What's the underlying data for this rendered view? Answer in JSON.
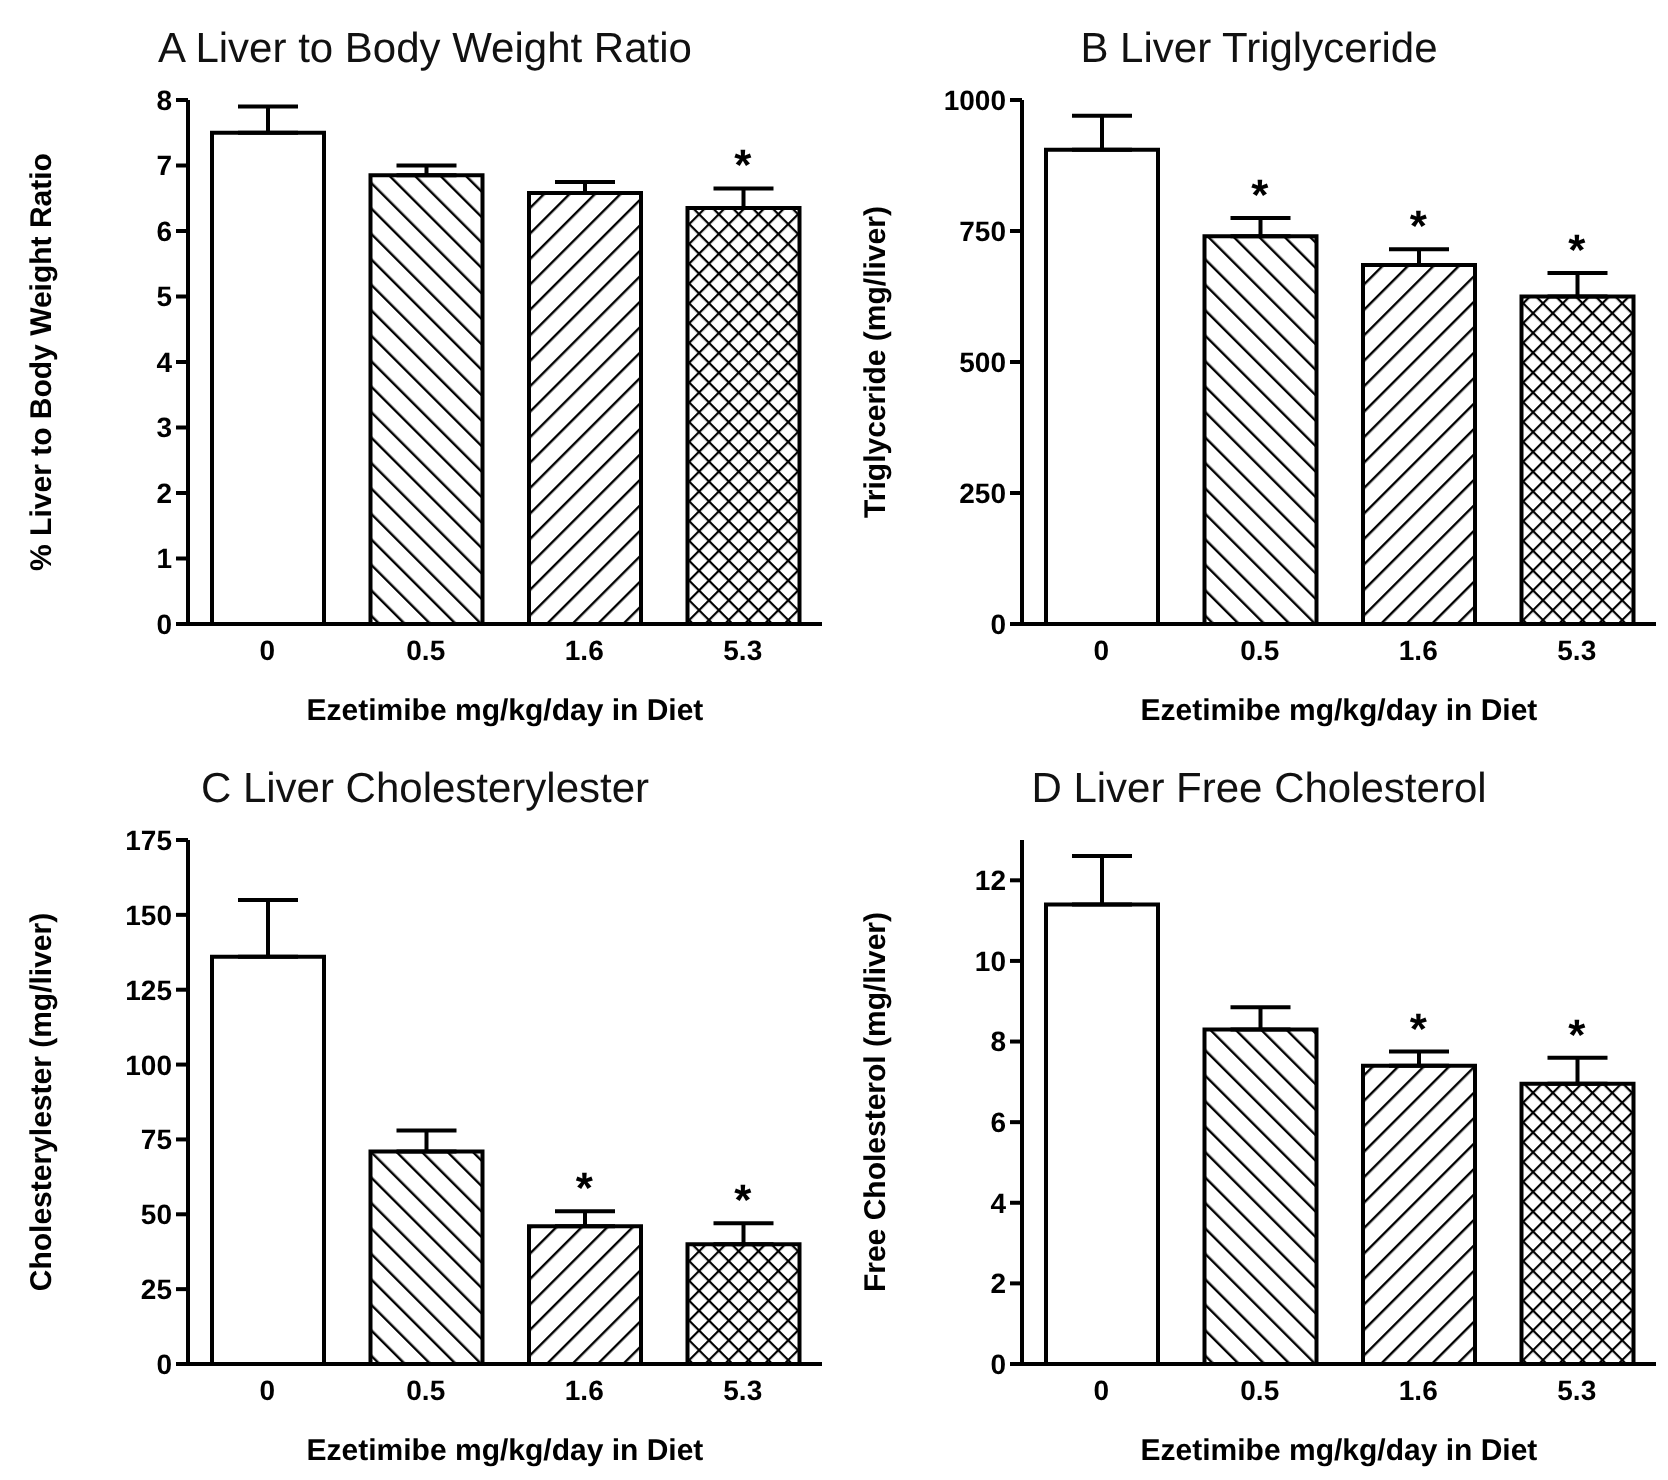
{
  "chart_data": [
    {
      "type": "bar",
      "title": "A  Liver to Body Weight Ratio",
      "xlabel": "Ezetimibe mg/kg/day in Diet",
      "ylabel": "% Liver to Body Weight Ratio",
      "categories": [
        "0",
        "0.5",
        "1.6",
        "5.3"
      ],
      "values": [
        7.5,
        6.85,
        6.58,
        6.35
      ],
      "errors": [
        [
          7.5,
          7.9
        ],
        [
          6.85,
          7.0
        ],
        [
          6.58,
          6.75
        ],
        [
          6.35,
          6.65
        ]
      ],
      "colors": [
        "#ffffff",
        "#000000",
        "#000000",
        "#000000"
      ],
      "ylim": [
        0,
        8
      ],
      "yticks": [
        0,
        1,
        2,
        3,
        4,
        5,
        6,
        7,
        8
      ],
      "grid": false,
      "legend": false,
      "annotations": [
        {
          "text": "*",
          "x": "5.3",
          "y": 6.65
        }
      ]
    },
    {
      "type": "bar",
      "title": "B  Liver Triglyceride",
      "xlabel": "Ezetimibe mg/kg/day in Diet",
      "ylabel": "Triglyceride (mg/liver)",
      "categories": [
        "0",
        "0.5",
        "1.6",
        "5.3"
      ],
      "values": [
        905,
        740,
        685,
        625
      ],
      "errors": [
        [
          905,
          970
        ],
        [
          740,
          775
        ],
        [
          685,
          715
        ],
        [
          625,
          670
        ]
      ],
      "colors": [
        "#ffffff",
        "#000000",
        "#000000",
        "#000000"
      ],
      "ylim": [
        0,
        1000
      ],
      "yticks": [
        0,
        250,
        500,
        750,
        1000
      ],
      "grid": false,
      "legend": false,
      "annotations": [
        {
          "text": "*",
          "x": "0.5",
          "y": 775
        },
        {
          "text": "*",
          "x": "1.6",
          "y": 715
        },
        {
          "text": "*",
          "x": "5.3",
          "y": 670
        }
      ]
    },
    {
      "type": "bar",
      "title": "C  Liver Cholesterylester",
      "xlabel": "Ezetimibe mg/kg/day in Diet",
      "ylabel": "Cholesterylester (mg/liver)",
      "categories": [
        "0",
        "0.5",
        "1.6",
        "5.3"
      ],
      "values": [
        136,
        71,
        46,
        40
      ],
      "errors": [
        [
          136,
          155
        ],
        [
          71,
          78
        ],
        [
          46,
          51
        ],
        [
          40,
          47
        ]
      ],
      "colors": [
        "#ffffff",
        "#000000",
        "#000000",
        "#000000"
      ],
      "ylim": [
        0,
        175
      ],
      "yticks": [
        0,
        25,
        50,
        75,
        100,
        125,
        150,
        175
      ],
      "grid": false,
      "legend": false,
      "annotations": [
        {
          "text": "*",
          "x": "1.6",
          "y": 51
        },
        {
          "text": "*",
          "x": "5.3",
          "y": 47
        }
      ]
    },
    {
      "type": "bar",
      "title": "D  Liver Free Cholesterol",
      "xlabel": "Ezetimibe mg/kg/day in Diet",
      "ylabel": "Free Cholesterol (mg/liver)",
      "categories": [
        "0",
        "0.5",
        "1.6",
        "5.3"
      ],
      "values": [
        11.4,
        8.3,
        7.4,
        6.95
      ],
      "errors": [
        [
          11.4,
          12.6
        ],
        [
          8.3,
          8.85
        ],
        [
          7.4,
          7.75
        ],
        [
          6.95,
          7.6
        ]
      ],
      "colors": [
        "#ffffff",
        "#000000",
        "#000000",
        "#000000"
      ],
      "ylim": [
        0,
        13
      ],
      "yticks": [
        0,
        2,
        4,
        6,
        8,
        10,
        12
      ],
      "grid": false,
      "legend": false,
      "annotations": [
        {
          "text": "*",
          "x": "1.6",
          "y": 7.75
        },
        {
          "text": "*",
          "x": "5.3",
          "y": 7.6
        }
      ]
    }
  ]
}
